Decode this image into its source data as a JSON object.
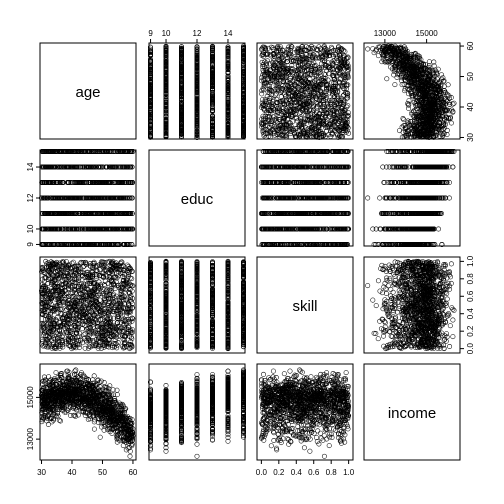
{
  "chart_data": {
    "type": "scatter-matrix",
    "variables": [
      "age",
      "educ",
      "skill",
      "income"
    ],
    "ranges": {
      "age": [
        29.5,
        61
      ],
      "educ": [
        8.9,
        15.1
      ],
      "skill": [
        -0.05,
        1.05
      ],
      "income": [
        12000,
        16600
      ]
    },
    "ticks": {
      "age": [
        30,
        40,
        50,
        60
      ],
      "educ": [
        9,
        10,
        12,
        14
      ],
      "educ_top": [
        9,
        10,
        12,
        14
      ],
      "skill": [
        0.0,
        0.2,
        0.4,
        0.6,
        0.8,
        1.0
      ],
      "income_top": [
        13000,
        15000
      ],
      "income_left": [
        13000,
        15000
      ]
    },
    "tick_labels": {
      "age_bottom": [
        "30",
        "40",
        "50",
        "60"
      ],
      "age_right": [
        "30",
        "40",
        "50",
        "60"
      ],
      "educ_top": [
        "9",
        "10",
        "12",
        "14"
      ],
      "educ_left": [
        "9",
        "10",
        "12",
        "14"
      ],
      "skill_bottom": [
        "0.0",
        "0.2",
        "0.4",
        "0.6",
        "0.8",
        "1.0"
      ],
      "skill_right": [
        "0.0",
        "0.2",
        "0.4",
        "0.6",
        "0.8",
        "1.0"
      ],
      "income_top": [
        "13000",
        "15000"
      ],
      "income_left": [
        "13000",
        "15000"
      ]
    },
    "educ_levels": [
      9,
      10,
      11,
      12,
      13,
      14,
      15
    ],
    "relationships": {
      "age_income": "inverted-U: income ≈ 15200 peaking near age 40, falling to ≈ 12800 at age 60",
      "educ_income": "income rises ≈ 150 per year of education",
      "skill_income": "no visible relationship"
    },
    "marker": "open-circle",
    "grid": false,
    "legend": "none"
  }
}
